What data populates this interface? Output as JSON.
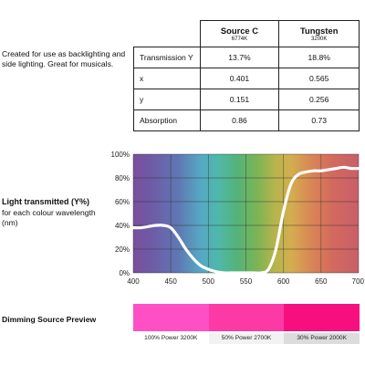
{
  "description": "Created for use as backlighting and side lighting. Great for musicals.",
  "table": {
    "sources": [
      {
        "name": "Source C",
        "temp": "6774K"
      },
      {
        "name": "Tungsten",
        "temp": "3200K"
      }
    ],
    "rows": [
      {
        "label": "Transmission Y",
        "values": [
          "13.7%",
          "18.8%"
        ]
      },
      {
        "label": "x",
        "values": [
          "0.401",
          "0.565"
        ]
      },
      {
        "label": "y",
        "values": [
          "0.151",
          "0.256"
        ]
      },
      {
        "label": "Absorption",
        "values": [
          "0.86",
          "0.73"
        ]
      }
    ]
  },
  "light_transmitted": {
    "title": "Light transmitted (Y%)",
    "subtitle": "for each colour wavelength (nm)"
  },
  "chart_data": {
    "type": "line",
    "title": "Light transmitted (Y%)",
    "xlabel": "",
    "ylabel": "",
    "xlim": [
      400,
      700
    ],
    "ylim": [
      0,
      100
    ],
    "x_ticks": [
      "400",
      "450",
      "500",
      "550",
      "600",
      "650",
      "700"
    ],
    "y_ticks": [
      "0%",
      "20%",
      "40%",
      "60%",
      "80%",
      "100%"
    ],
    "grid": true,
    "series": [
      {
        "x": [
          400,
          410,
          420,
          430,
          440,
          450,
          460,
          470,
          480,
          490,
          500,
          510,
          520,
          530,
          540,
          550,
          560,
          570,
          580,
          590,
          600,
          610,
          620,
          630,
          640,
          650,
          660,
          670,
          680,
          690,
          700
        ],
        "y": [
          38,
          38,
          39,
          40,
          40,
          38,
          30,
          20,
          12,
          6,
          3,
          1,
          0,
          0,
          0,
          0,
          0,
          0,
          3,
          20,
          52,
          75,
          83,
          85,
          86,
          86,
          87,
          88,
          89,
          88,
          88
        ]
      }
    ]
  },
  "dimming": {
    "title": "Dimming Source Preview",
    "swatches": [
      {
        "label": "100% Power 3200K",
        "color": "#ff4fc4"
      },
      {
        "label": "50% Power 2700K",
        "color": "#fb3aa6"
      },
      {
        "label": "30% Power 2000K",
        "color": "#f70f80"
      }
    ],
    "label_backgrounds": [
      "#ffffff",
      "#f2f2f2",
      "#dcdcdc"
    ]
  }
}
